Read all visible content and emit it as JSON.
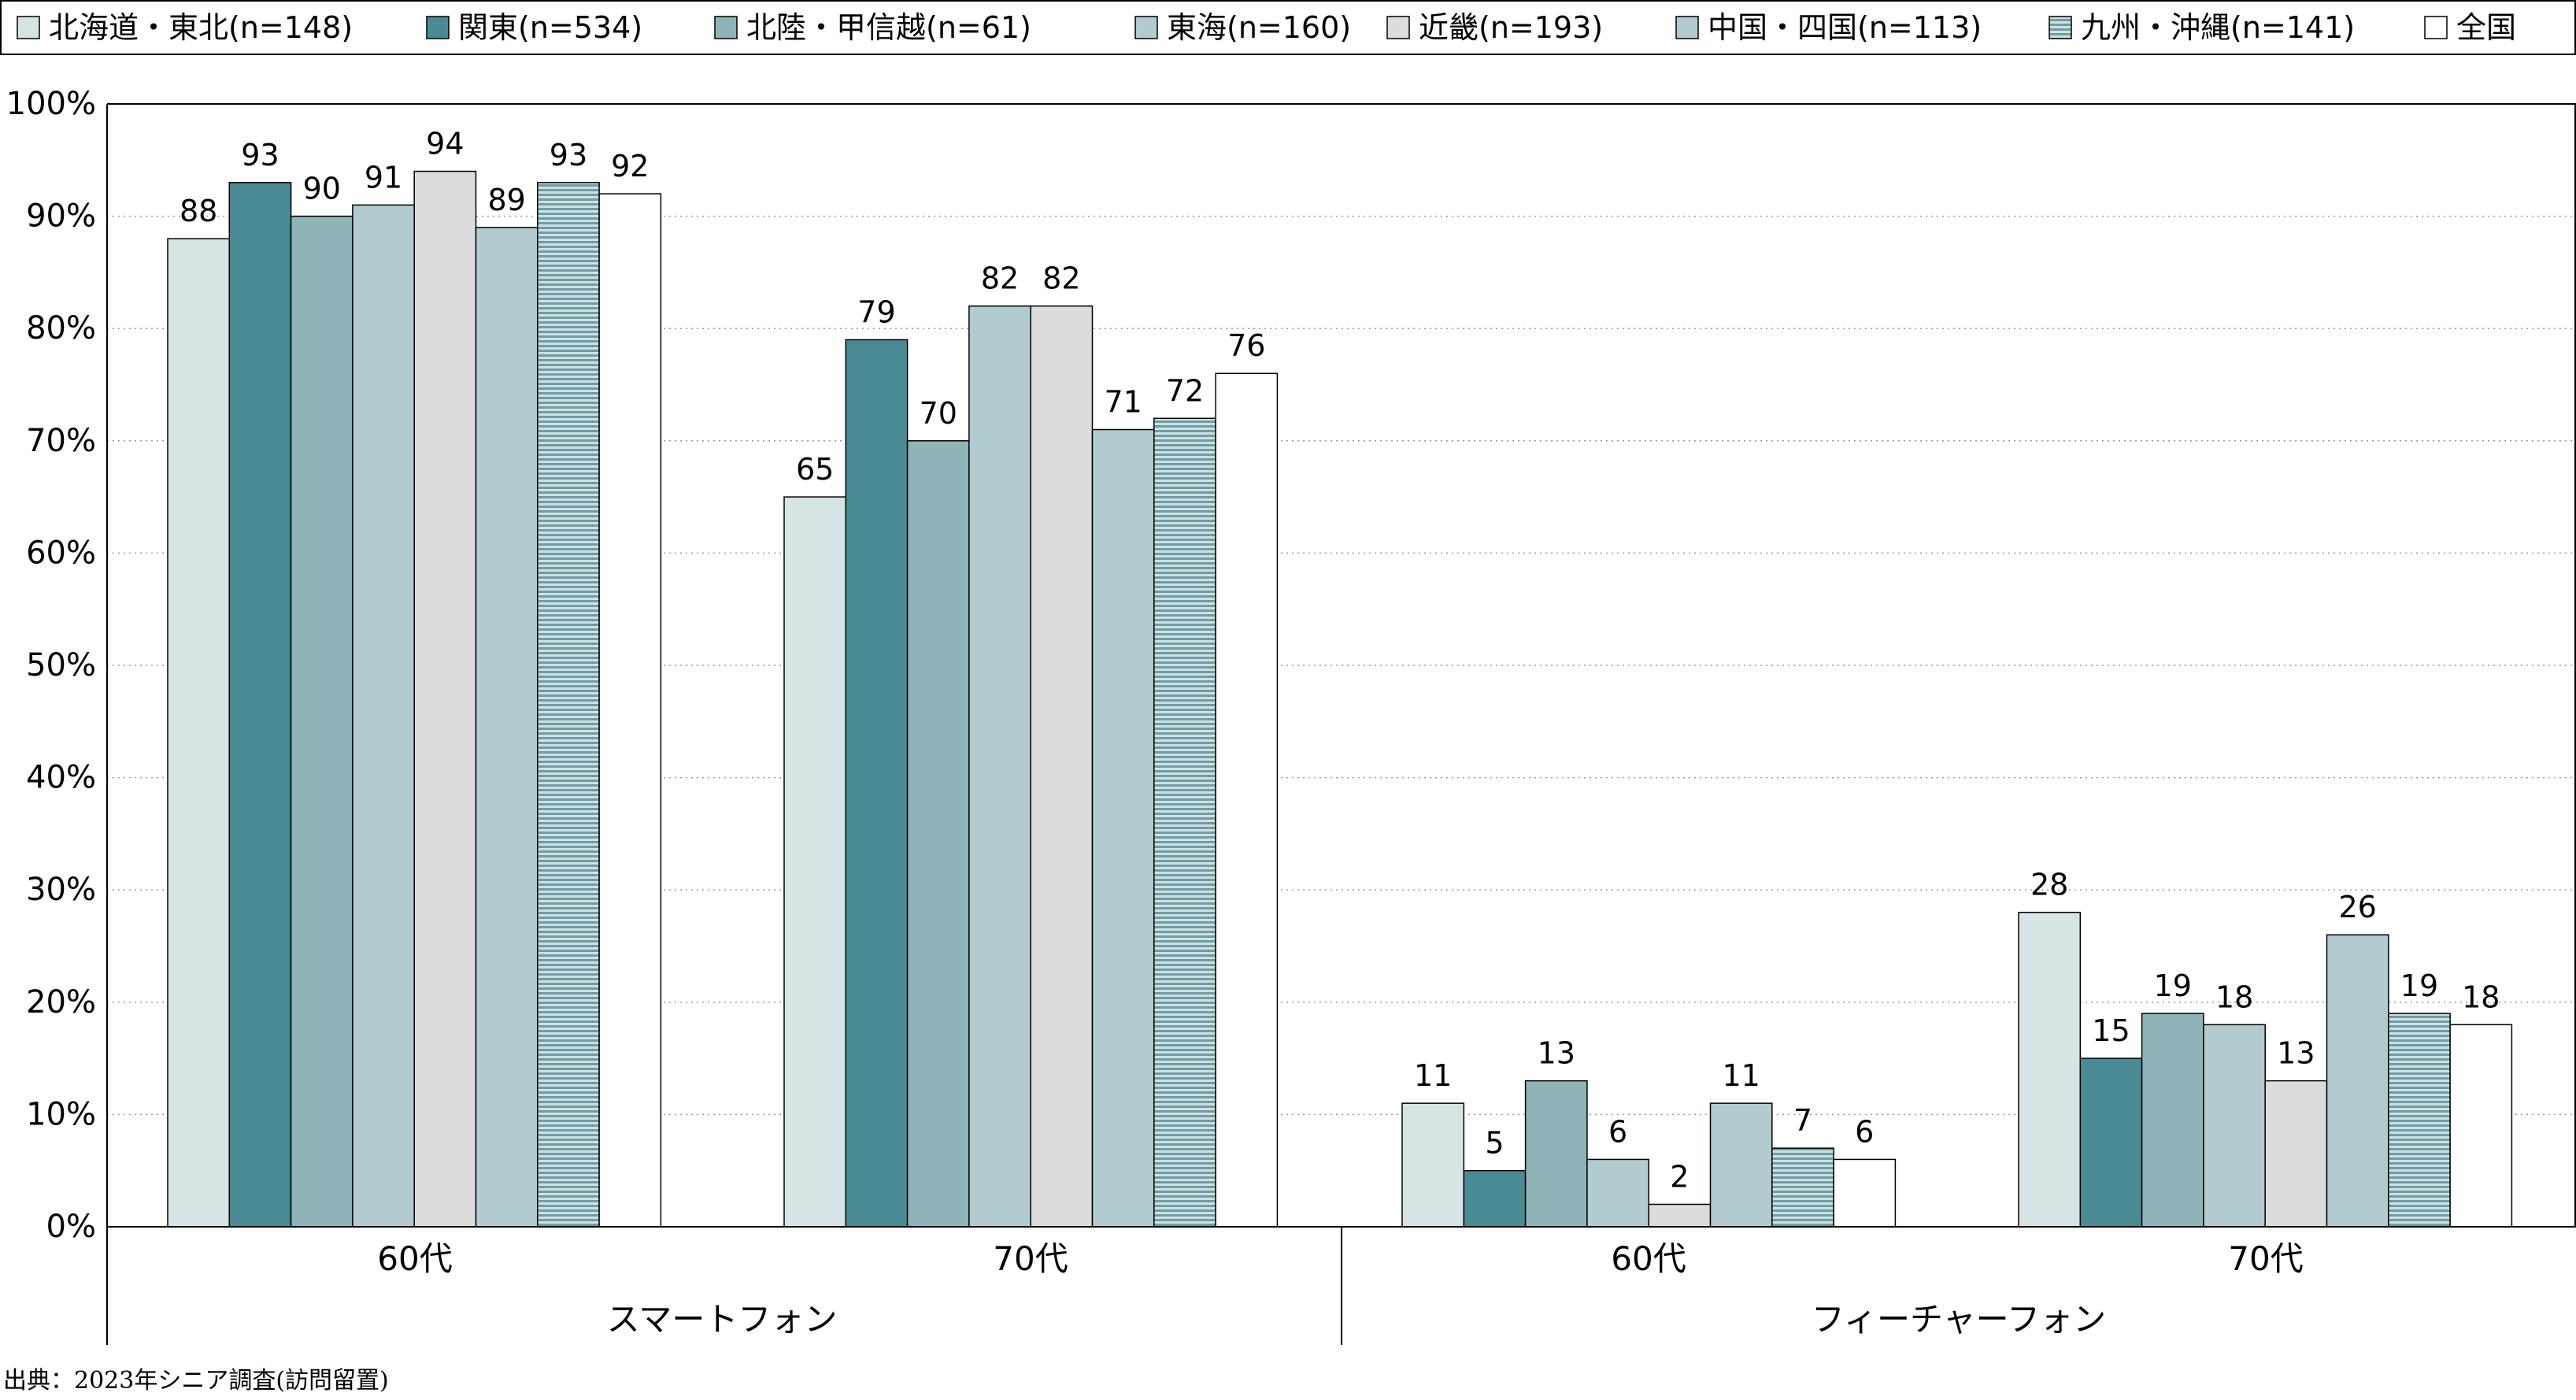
{
  "chart_data": {
    "type": "bar",
    "yticks": [
      "0%",
      "10%",
      "20%",
      "30%",
      "40%",
      "50%",
      "60%",
      "70%",
      "80%",
      "90%",
      "100%"
    ],
    "ylim": [
      0,
      100
    ],
    "grid": "horizontal-dotted",
    "legend_position": "top",
    "groups": [
      {
        "label": "スマートフォン",
        "subgroups": [
          "60代",
          "70代"
        ]
      },
      {
        "label": "フィーチャーフォン",
        "subgroups": [
          "60代",
          "70代"
        ]
      }
    ],
    "categories": [
      "スマートフォン 60代",
      "スマートフォン 70代",
      "フィーチャーフォン 60代",
      "フィーチャーフォン 70代"
    ],
    "series": [
      {
        "name": "北海道・東北(n=148)",
        "values": [
          88,
          65,
          11,
          28
        ],
        "display": [
          "88",
          "65",
          "11",
          "28"
        ],
        "color": "#d6e4e6",
        "pattern": "solid"
      },
      {
        "name": "関東(n=534)",
        "values": [
          93,
          79,
          5,
          15
        ],
        "display": [
          "93",
          "79",
          "5",
          "15"
        ],
        "color": "#4a8a92",
        "pattern": "solid"
      },
      {
        "name": "北陸・甲信越(n=61)",
        "values": [
          90,
          70,
          13,
          19
        ],
        "display": [
          "90",
          "70",
          "13",
          "19"
        ],
        "color": "#8fb4b8",
        "pattern": "solid"
      },
      {
        "name": "東海(n=160)",
        "values": [
          91,
          82,
          6,
          18
        ],
        "display": [
          "91",
          "82",
          "6",
          "18"
        ],
        "color": "#b1cbcf",
        "pattern": "solid"
      },
      {
        "name": "近畿(n=193)",
        "values": [
          94,
          82,
          2,
          13
        ],
        "display": [
          "94",
          "82",
          "2",
          "13"
        ],
        "color": "#dcdcdc",
        "pattern": "solid"
      },
      {
        "name": "中国・四国(n=113)",
        "values": [
          89,
          71,
          11,
          26
        ],
        "display": [
          "89",
          "71",
          "11",
          "26"
        ],
        "color": "#b1cbcf",
        "pattern": "solid"
      },
      {
        "name": "九州・沖縄(n=141)",
        "values": [
          93,
          72,
          7,
          19
        ],
        "display": [
          "93",
          "72",
          "7",
          "19"
        ],
        "color": "#a9c6ca",
        "pattern": "horizontal-stripes"
      },
      {
        "name": "全国",
        "values": [
          92,
          76,
          6,
          18
        ],
        "display": [
          "92",
          "76",
          "6",
          "18"
        ],
        "color": "#ffffff",
        "pattern": "solid"
      }
    ]
  },
  "source_note": "出典：2023年シニア調査(訪問留置)"
}
